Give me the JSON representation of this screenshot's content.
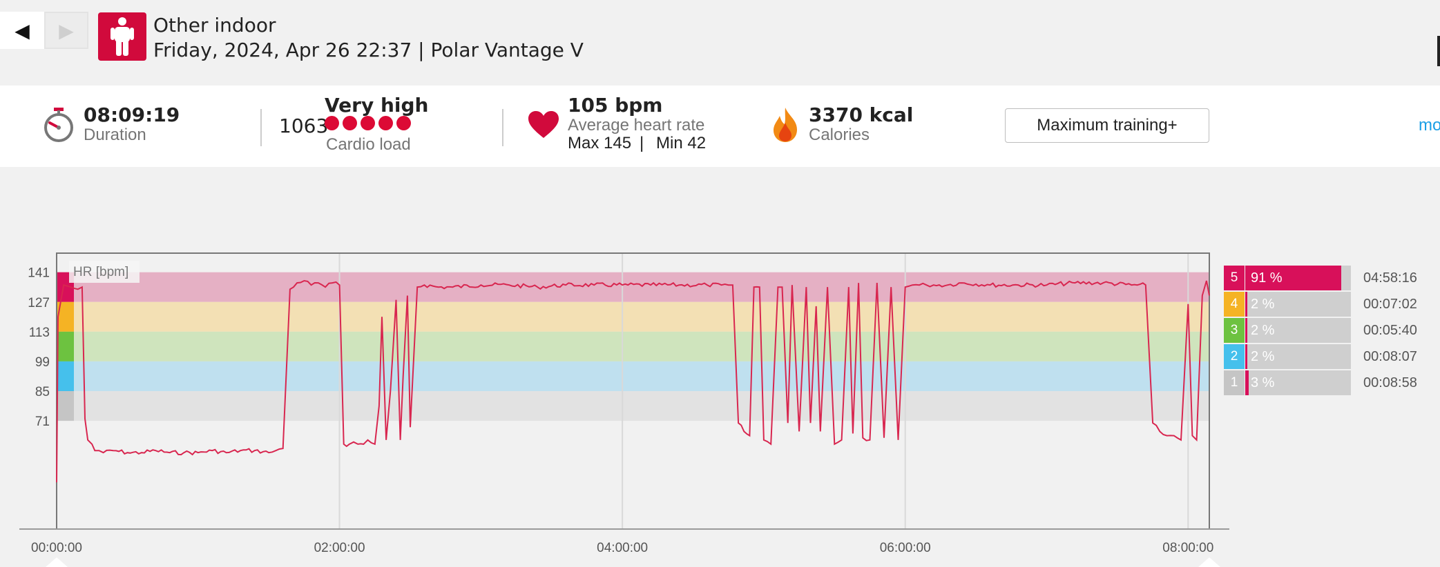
{
  "header": {
    "title": "Other indoor",
    "subtitle": "Friday, 2024, Apr 26 22:37 | Polar Vantage V",
    "prev_icon": "◀",
    "next_icon": "▶",
    "sport_icon": "person-standing-icon"
  },
  "summary": {
    "duration": {
      "value": "08:09:19",
      "label": "Duration",
      "icon": "stopwatch-icon"
    },
    "cardio_load": {
      "value": "1063",
      "level": "Very high",
      "label": "Cardio load",
      "dots": 5
    },
    "heart_rate": {
      "value": "105 bpm",
      "label": "Average heart rate",
      "max": "Max 145",
      "divider": "|",
      "min": "Min 42",
      "icon": "heart-icon"
    },
    "calories": {
      "value": "3370 kcal",
      "label": "Calories",
      "icon": "flame-icon"
    },
    "benefit_button": "Maximum training+",
    "more_link": "mo"
  },
  "chart": {
    "legend_label": "HR [bpm]",
    "y_ticks": [
      "141",
      "127",
      "113",
      "99",
      "85",
      "71"
    ],
    "x_ticks": [
      "00:00:00",
      "02:00:00",
      "04:00:00",
      "06:00:00",
      "08:00:00"
    ]
  },
  "colors": {
    "accent": "#d10a3c",
    "line": "#d8264f",
    "zone5": "#e5b0c4",
    "zone4": "#f3e0b4",
    "zone3": "#cfe4bd",
    "zone2": "#bfe0ef",
    "zone1": "#e2e2e2",
    "zone5_marker": "#d8105a",
    "zone4_marker": "#f5b324",
    "zone3_marker": "#6dc240",
    "zone2_marker": "#45c0ec",
    "zone1_marker": "#c5c5c5"
  },
  "zones": [
    {
      "num": "5",
      "pct": "91 %",
      "fraction": 0.91,
      "time": "04:58:16",
      "color": "#d8105a"
    },
    {
      "num": "4",
      "pct": "2 %",
      "fraction": 0.02,
      "time": "00:07:02",
      "color": "#f5b324"
    },
    {
      "num": "3",
      "pct": "2 %",
      "fraction": 0.02,
      "time": "00:05:40",
      "color": "#6dc240"
    },
    {
      "num": "2",
      "pct": "2 %",
      "fraction": 0.02,
      "time": "00:08:07",
      "color": "#45c0ec"
    },
    {
      "num": "1",
      "pct": "3 %",
      "fraction": 0.03,
      "time": "00:08:58",
      "color": "#c5c5c5"
    }
  ],
  "chart_data": {
    "type": "line",
    "xlabel": "",
    "ylabel": "HR [bpm]",
    "ylim": [
      20,
      150
    ],
    "x_unit": "hours",
    "series": [
      {
        "x": [
          0,
          0.01,
          0.05,
          0.1,
          0.15,
          0.18,
          0.2,
          0.22,
          0.25,
          0.27,
          0.3,
          0.33,
          0.4,
          0.5,
          0.6,
          0.7,
          0.8,
          0.9,
          1.0,
          1.1,
          1.2,
          1.3,
          1.4,
          1.5,
          1.55,
          1.6,
          1.65,
          1.7,
          1.75,
          1.8,
          1.85,
          1.9,
          1.95,
          2.0,
          2.03,
          2.05,
          2.07,
          2.1,
          2.13,
          2.17,
          2.2,
          2.25,
          2.28,
          2.3,
          2.33,
          2.36,
          2.4,
          2.43,
          2.45,
          2.48,
          2.5,
          2.55,
          2.6,
          2.7,
          2.8,
          3.0,
          3.2,
          3.4,
          3.6,
          3.8,
          4.0,
          4.2,
          4.4,
          4.6,
          4.7,
          4.75,
          4.78,
          4.82,
          4.86,
          4.9,
          4.93,
          4.97,
          5.0,
          5.05,
          5.1,
          5.13,
          5.17,
          5.2,
          5.25,
          5.3,
          5.33,
          5.37,
          5.4,
          5.45,
          5.5,
          5.55,
          5.6,
          5.63,
          5.67,
          5.7,
          5.75,
          5.8,
          5.85,
          5.9,
          5.95,
          6.0,
          6.05,
          6.1,
          6.15,
          6.2,
          6.3,
          6.4,
          6.6,
          6.8,
          7.0,
          7.2,
          7.4,
          7.6,
          7.7,
          7.75,
          7.8,
          7.85,
          7.9,
          7.95,
          8.0,
          8.03,
          8.06,
          8.1,
          8.13,
          8.15
        ],
        "y": [
          42,
          120,
          135,
          134,
          133,
          134,
          72,
          62,
          60,
          57,
          57,
          56,
          57,
          56,
          56,
          57,
          56,
          56,
          56,
          57,
          56,
          57,
          57,
          56,
          57,
          58,
          133,
          136,
          137,
          135,
          136,
          134,
          136,
          135,
          60,
          59,
          60,
          61,
          60,
          60,
          62,
          60,
          78,
          120,
          62,
          85,
          128,
          62,
          92,
          130,
          68,
          134,
          135,
          134,
          134,
          135,
          135,
          134,
          135,
          135,
          135,
          135,
          135,
          135,
          135,
          135,
          135,
          70,
          66,
          64,
          134,
          134,
          62,
          60,
          134,
          134,
          70,
          135,
          66,
          134,
          70,
          125,
          66,
          134,
          60,
          62,
          134,
          65,
          136,
          63,
          62,
          136,
          63,
          134,
          62,
          134,
          135,
          135,
          135,
          135,
          135,
          136,
          135,
          135,
          135,
          136,
          136,
          135,
          135,
          70,
          66,
          64,
          64,
          62,
          126,
          64,
          62,
          130,
          137,
          130
        ]
      }
    ]
  }
}
